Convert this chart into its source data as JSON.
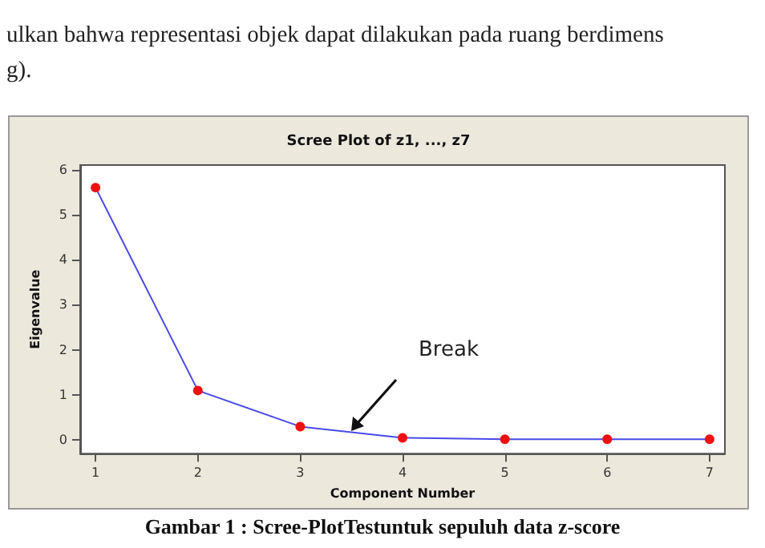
{
  "chart_data": {
    "type": "line",
    "title": "Scree Plot of z1, ..., z7",
    "xlabel": "Component Number",
    "ylabel": "Eigenvalue",
    "x": [
      1,
      2,
      3,
      4,
      5,
      6,
      7
    ],
    "series": [
      {
        "color": "#4a4ae8",
        "colors": [
          "#ee1111",
          "#ee1111",
          "#ee1111",
          "#ee1111",
          "#ee1111",
          "#ee1111",
          "#ee1111"
        ],
        "values": [
          5.6,
          1.1,
          0.3,
          0.05,
          0.02,
          0.02,
          0.02
        ]
      }
    ],
    "marker": "circle",
    "line_style": "solid",
    "grid": false,
    "xlim": [
      0.85,
      7.15
    ],
    "xticks": [
      1,
      2,
      3,
      4,
      5,
      6,
      7
    ],
    "ylim": [
      -0.3,
      6.1
    ],
    "yticks": [
      0,
      1,
      2,
      3,
      4,
      5,
      6
    ],
    "annotations": [
      "ulkan bahwa representasi objek dapat dilakukan pada ruang berdimens",
      "g).",
      "Break",
      "Gambar 1 : Scree-PlotTestuntuk sepuluh data z-score"
    ]
  }
}
